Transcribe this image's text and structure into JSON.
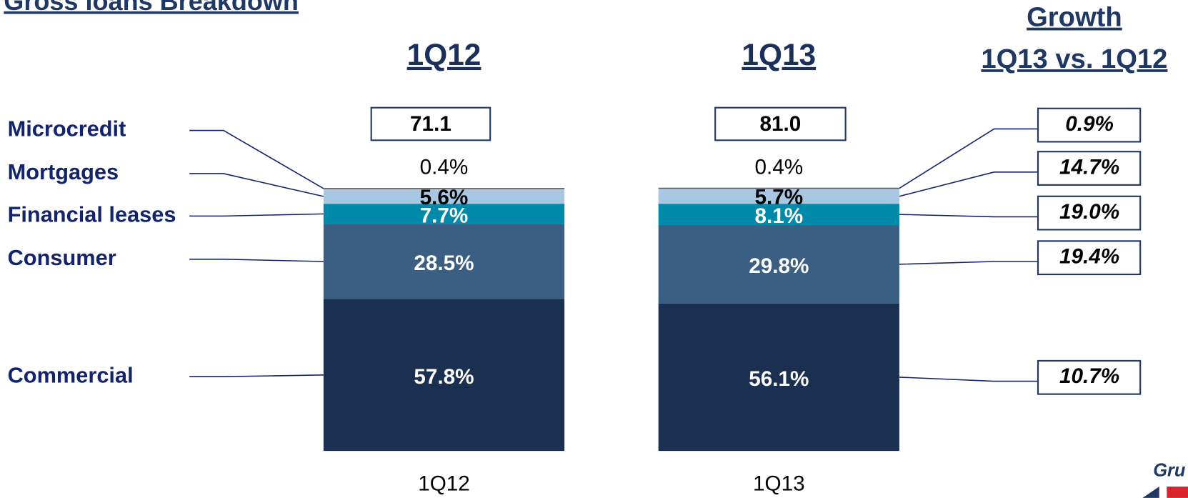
{
  "chart_data": {
    "type": "stacked_bar",
    "title": "Gross loans Breakdown",
    "growth_title": "Growth",
    "growth_subtitle": "1Q13 vs. 1Q12",
    "categories": [
      "1Q12",
      "1Q13"
    ],
    "series": [
      {
        "name": "Commercial",
        "color": "#1b2f50",
        "values": [
          57.8,
          56.1
        ],
        "value_labels": [
          "57.8%",
          "56.1%"
        ]
      },
      {
        "name": "Consumer",
        "color": "#3a5f82",
        "values": [
          28.5,
          29.8
        ],
        "value_labels": [
          "28.5%",
          "29.8%"
        ]
      },
      {
        "name": "Financial leases",
        "color": "#0089a8",
        "values": [
          7.7,
          8.1
        ],
        "value_labels": [
          "7.7%",
          "8.1%"
        ]
      },
      {
        "name": "Mortgages",
        "color": "#a9c6e3",
        "values": [
          5.6,
          5.7
        ],
        "value_labels": [
          "5.6%",
          "5.7%"
        ]
      },
      {
        "name": "Microcredit",
        "color": "#555555",
        "values": [
          0.4,
          0.4
        ],
        "value_labels": [
          "0.4%",
          "0.4%"
        ]
      }
    ],
    "totals": {
      "values": [
        71.1,
        81.0
      ],
      "value_labels": [
        "71.1",
        "81.0"
      ]
    },
    "growth": {
      "values": [
        10.7,
        19.4,
        19.0,
        14.7,
        0.9
      ],
      "value_labels": [
        "10.7%",
        "19.4%",
        "19.0%",
        "14.7%",
        "0.9%"
      ]
    },
    "logo": "Gru"
  }
}
